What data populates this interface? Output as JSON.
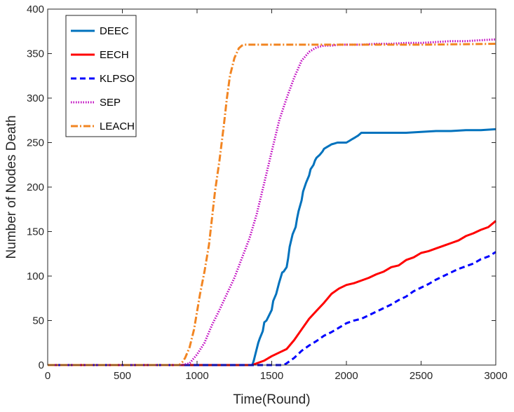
{
  "chart_data": {
    "type": "line",
    "title": "",
    "xlabel": "Time(Round)",
    "ylabel": "Number of Nodes Death",
    "xlim": [
      0,
      3000
    ],
    "ylim": [
      0,
      400
    ],
    "xticks": [
      0,
      500,
      1000,
      1500,
      2000,
      2500,
      3000
    ],
    "yticks": [
      0,
      50,
      100,
      150,
      200,
      250,
      300,
      350,
      400
    ],
    "grid": false,
    "legend_position": "top-left",
    "series": [
      {
        "name": "DEEC",
        "color": "#0072BD",
        "style": "solid",
        "x": [
          0,
          1370,
          1380,
          1395,
          1410,
          1420,
          1440,
          1450,
          1465,
          1480,
          1500,
          1510,
          1530,
          1550,
          1570,
          1580,
          1600,
          1610,
          1620,
          1640,
          1660,
          1670,
          1680,
          1700,
          1710,
          1730,
          1750,
          1760,
          1780,
          1790,
          1800,
          1820,
          1840,
          1850,
          1870,
          1890,
          1900,
          1920,
          1940,
          1960,
          1980,
          2000,
          2020,
          2040,
          2060,
          2080,
          2100,
          2200,
          2300,
          2400,
          2500,
          2600,
          2700,
          2800,
          2900,
          3000
        ],
        "y": [
          0,
          0,
          5,
          15,
          25,
          30,
          38,
          48,
          50,
          55,
          62,
          72,
          80,
          93,
          104,
          105,
          110,
          120,
          133,
          147,
          155,
          165,
          173,
          185,
          195,
          205,
          213,
          220,
          225,
          230,
          233,
          236,
          240,
          243,
          245,
          247,
          248,
          249,
          250,
          250,
          250,
          250,
          252,
          254,
          256,
          258,
          261,
          261,
          261,
          261,
          262,
          263,
          263,
          264,
          264,
          265
        ]
      },
      {
        "name": "EECH",
        "color": "#FF0000",
        "style": "solid",
        "x": [
          0,
          1370,
          1400,
          1450,
          1500,
          1550,
          1600,
          1650,
          1700,
          1750,
          1800,
          1850,
          1900,
          1950,
          2000,
          2050,
          2100,
          2150,
          2200,
          2250,
          2300,
          2350,
          2400,
          2450,
          2500,
          2550,
          2600,
          2650,
          2700,
          2750,
          2800,
          2850,
          2900,
          2950,
          3000
        ],
        "y": [
          0,
          0,
          2,
          5,
          10,
          14,
          18,
          28,
          40,
          52,
          61,
          70,
          80,
          86,
          90,
          92,
          95,
          98,
          102,
          105,
          110,
          112,
          118,
          121,
          126,
          128,
          131,
          134,
          137,
          140,
          145,
          148,
          152,
          155,
          162
        ]
      },
      {
        "name": "KLPSO",
        "color": "#0000FF",
        "style": "dashed",
        "x": [
          0,
          1580,
          1600,
          1650,
          1700,
          1750,
          1800,
          1850,
          1900,
          1950,
          2000,
          2050,
          2100,
          2150,
          2200,
          2250,
          2300,
          2350,
          2400,
          2450,
          2500,
          2550,
          2600,
          2650,
          2700,
          2750,
          2800,
          2850,
          2900,
          2950,
          3000
        ],
        "y": [
          0,
          0,
          2,
          8,
          16,
          22,
          27,
          33,
          37,
          42,
          47,
          50,
          52,
          56,
          60,
          64,
          68,
          73,
          77,
          83,
          87,
          91,
          96,
          100,
          104,
          108,
          111,
          114,
          119,
          122,
          127
        ]
      },
      {
        "name": "SEP",
        "color": "#BF00BF",
        "style": "dotted",
        "x": [
          0,
          900,
          950,
          1000,
          1050,
          1100,
          1150,
          1200,
          1250,
          1300,
          1350,
          1400,
          1450,
          1500,
          1550,
          1600,
          1650,
          1700,
          1750,
          1800,
          1850,
          1900,
          1950,
          2000,
          2100,
          2200,
          2300,
          2400,
          2500,
          2600,
          2700,
          2800,
          2900,
          3000
        ],
        "y": [
          0,
          0,
          2,
          12,
          25,
          45,
          62,
          80,
          98,
          120,
          142,
          170,
          205,
          240,
          275,
          300,
          323,
          342,
          352,
          357,
          359,
          359,
          360,
          360,
          360,
          361,
          361,
          362,
          362,
          363,
          364,
          364,
          365,
          366
        ]
      },
      {
        "name": "LEACH",
        "color": "#F28522",
        "style": "dashdot",
        "x": [
          0,
          880,
          900,
          920,
          950,
          980,
          1000,
          1020,
          1050,
          1080,
          1100,
          1120,
          1150,
          1180,
          1200,
          1220,
          1250,
          1280,
          1300,
          1320,
          1350,
          1400,
          1500,
          1700,
          2000,
          2500,
          3000
        ],
        "y": [
          0,
          0,
          3,
          8,
          20,
          40,
          60,
          80,
          105,
          135,
          165,
          195,
          230,
          270,
          300,
          325,
          345,
          356,
          359,
          360,
          360,
          360,
          360,
          360,
          360,
          360,
          361
        ]
      }
    ]
  }
}
